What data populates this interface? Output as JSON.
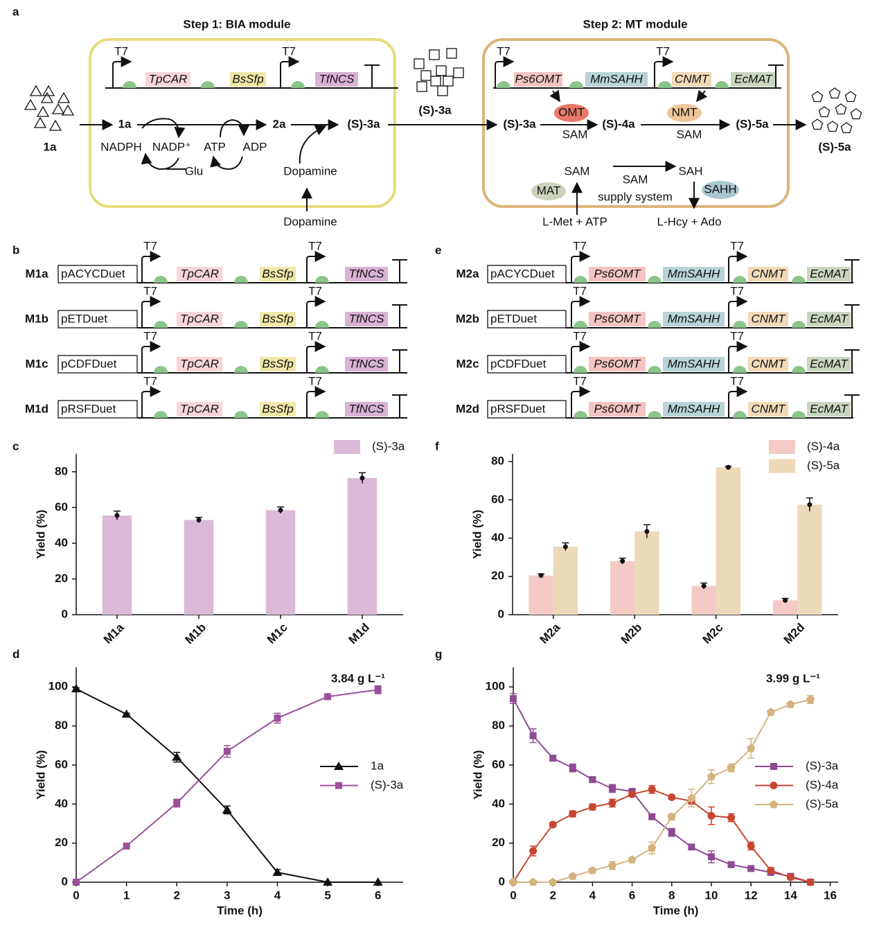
{
  "panel_labels": [
    "a",
    "b",
    "c",
    "d",
    "e",
    "f",
    "g"
  ],
  "diagram": {
    "step1_title": "Step 1: BIA module",
    "step2_title": "Step 2: MT module",
    "promoter": "T7",
    "bia_genes": [
      "TpCAR",
      "BsSfp",
      "TfNCS"
    ],
    "mt_genes": [
      "Ps6OMT",
      "MmSAHH",
      "CNMT",
      "EcMAT"
    ],
    "compounds": [
      "1a",
      "1a",
      "2a",
      "(S)-3a",
      "(S)-3a",
      "(S)-3a",
      "(S)-4a",
      "(S)-5a",
      "(S)-5a"
    ],
    "cofactors": [
      "NADPH",
      "NADP⁺",
      "ATP",
      "ADP",
      "Glu",
      "Dopamine",
      "Dopamine"
    ],
    "enzymes": [
      "OMT",
      "NMT",
      "MAT",
      "SAHH"
    ],
    "sam_labels": [
      "SAM",
      "SAM",
      "SAM",
      "SAH"
    ],
    "supply_system": [
      "SAM",
      "supply system"
    ],
    "inputs": [
      "L-Met + ATP",
      "L-Hcy + Ado"
    ]
  },
  "constructs_b": {
    "promoter": "T7",
    "genes": [
      "TpCAR",
      "BsSfp",
      "TfNCS"
    ],
    "rows": [
      {
        "id": "M1a",
        "plasmid": "pACYCDuet"
      },
      {
        "id": "M1b",
        "plasmid": "pETDuet"
      },
      {
        "id": "M1c",
        "plasmid": "pCDFDuet"
      },
      {
        "id": "M1d",
        "plasmid": "pRSFDuet"
      }
    ]
  },
  "constructs_e": {
    "promoter": "T7",
    "genes": [
      "Ps6OMT",
      "MmSAHH",
      "CNMT",
      "EcMAT"
    ],
    "rows": [
      {
        "id": "M2a",
        "plasmid": "pACYCDuet"
      },
      {
        "id": "M2b",
        "plasmid": "pETDuet"
      },
      {
        "id": "M2c",
        "plasmid": "pCDFDuet"
      },
      {
        "id": "M2d",
        "plasmid": "pRSFDuet"
      }
    ]
  },
  "chart_data": [
    {
      "type": "bar",
      "ylabel": "Yield (%)",
      "categories": [
        "M1a",
        "M1b",
        "M1c",
        "M1d"
      ],
      "ylim": [
        0,
        90
      ],
      "yticks": [
        0,
        20,
        40,
        60,
        80
      ],
      "legend": "upper right",
      "series": [
        {
          "name": "(S)-3a",
          "color": "#dbb9d7",
          "values": [
            55.5,
            53,
            58.5,
            76.5
          ],
          "errors": [
            2.5,
            1.5,
            1.8,
            3
          ]
        }
      ]
    },
    {
      "type": "bar",
      "ylabel": "Yield (%)",
      "categories": [
        "M2a",
        "M2b",
        "M2c",
        "M2d"
      ],
      "ylim": [
        0,
        84
      ],
      "yticks": [
        0,
        20,
        40,
        60,
        80
      ],
      "legend": "upper right",
      "series": [
        {
          "name": "(S)-4a",
          "color": "#f4c9c6",
          "values": [
            20.5,
            28,
            15,
            7.5
          ],
          "errors": [
            0.8,
            1.5,
            1.5,
            1
          ]
        },
        {
          "name": "(S)-5a",
          "color": "#ecd9b8",
          "values": [
            35.5,
            43.5,
            77,
            57.5
          ],
          "errors": [
            2,
            3.5,
            0.5,
            3.5
          ]
        }
      ]
    },
    {
      "type": "line",
      "ylabel": "Yield (%)",
      "xlabel": "Time (h)",
      "annotation": "3.84 g L⁻¹",
      "legend": "center right",
      "x": [
        0,
        1,
        2,
        3,
        4,
        5,
        6
      ],
      "xlim": [
        0,
        6.5
      ],
      "xticks": [
        0,
        1,
        2,
        3,
        4,
        5,
        6
      ],
      "ylim": [
        0,
        110
      ],
      "yticks": [
        0,
        20,
        40,
        60,
        80,
        100
      ],
      "series": [
        {
          "name": "1a",
          "color": "#111111",
          "marker": "triangle",
          "values": [
            99,
            86,
            64,
            37,
            5,
            0,
            0
          ],
          "errors": [
            0.5,
            0.5,
            2.5,
            2,
            1.5,
            0,
            0
          ]
        },
        {
          "name": "(S)-3a",
          "color": "#9b4f9a",
          "marker": "square",
          "values": [
            0,
            18.5,
            40.5,
            67,
            84,
            95,
            98.5
          ],
          "errors": [
            0,
            0.5,
            2,
            3,
            2.5,
            0.5,
            2
          ]
        }
      ]
    },
    {
      "type": "line",
      "ylabel": "Yield (%)",
      "xlabel": "Time (h)",
      "annotation": "3.99 g L⁻¹",
      "legend": "center right",
      "x": [
        0,
        1,
        2,
        3,
        4,
        5,
        6,
        7,
        8,
        9,
        10,
        11,
        12,
        13,
        14,
        15
      ],
      "xlim": [
        0,
        16.4
      ],
      "xticks": [
        0,
        2,
        4,
        6,
        8,
        10,
        12,
        14,
        16
      ],
      "ylim": [
        0,
        110
      ],
      "yticks": [
        0,
        20,
        40,
        60,
        80,
        100
      ],
      "series": [
        {
          "name": "(S)-3a",
          "color": "#8e4a92",
          "marker": "square",
          "values": [
            94,
            75,
            63.5,
            58.5,
            52.5,
            48,
            46.5,
            33.5,
            25.5,
            18,
            13,
            9,
            7,
            5,
            3,
            0
          ],
          "errors": [
            2.5,
            3.5,
            1,
            2,
            0.5,
            2,
            1,
            1,
            2,
            1,
            3,
            1,
            0.5,
            1,
            0.5,
            0
          ]
        },
        {
          "name": "(S)-4a",
          "color": "#c8452f",
          "marker": "circle",
          "values": [
            0,
            16,
            29.5,
            35,
            38.5,
            40.5,
            45,
            47.5,
            43.5,
            41.5,
            34,
            33,
            18.5,
            6,
            2.5,
            0
          ],
          "errors": [
            0,
            2.5,
            1,
            1.5,
            1.5,
            2,
            1,
            2,
            1,
            1.5,
            4.5,
            2,
            2,
            1.5,
            1,
            0
          ]
        },
        {
          "name": "(S)-5a",
          "color": "#d4b27c",
          "marker": "pentagon",
          "values": [
            0,
            0,
            0,
            3,
            6,
            8.5,
            11.5,
            17.5,
            33.5,
            43,
            54,
            58.5,
            68.5,
            87,
            91,
            93.5
          ],
          "errors": [
            0,
            0,
            0,
            0.5,
            1,
            2,
            1,
            3,
            1.5,
            4.5,
            3.5,
            2,
            5,
            1,
            0.5,
            2
          ]
        }
      ]
    }
  ]
}
